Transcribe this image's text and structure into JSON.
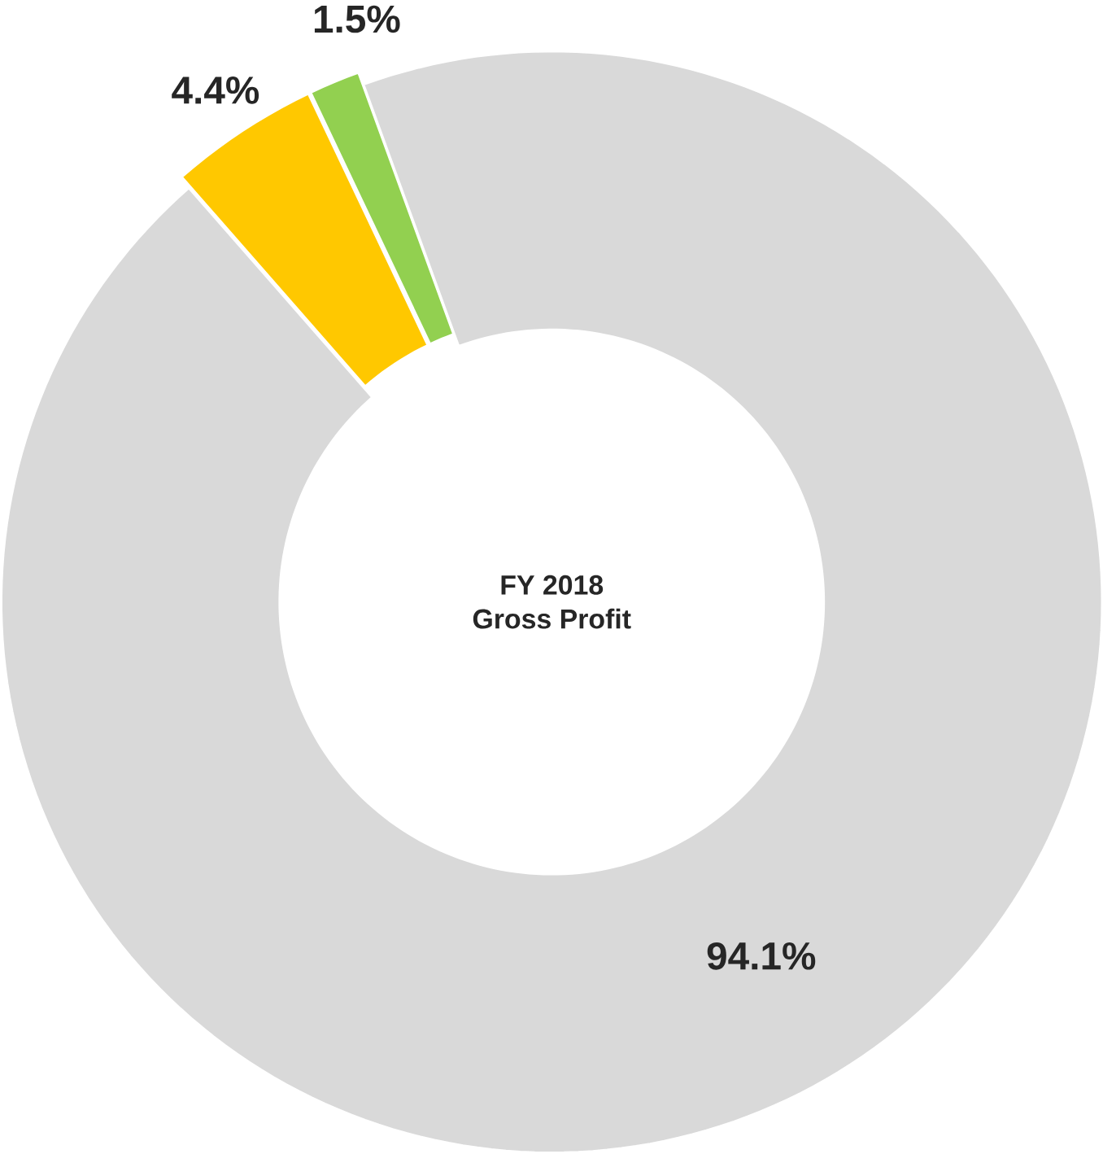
{
  "chart_data": {
    "type": "donut",
    "title": "FY 2018",
    "subtitle": "Gross Profit",
    "categories": [
      null,
      null,
      null
    ],
    "values": [
      94.1,
      4.4,
      1.5
    ],
    "colors": [
      "#d9d9d9",
      "#ffc800",
      "#92d050"
    ],
    "value_labels": [
      "94.1%",
      "4.4%",
      "1.5%"
    ]
  }
}
